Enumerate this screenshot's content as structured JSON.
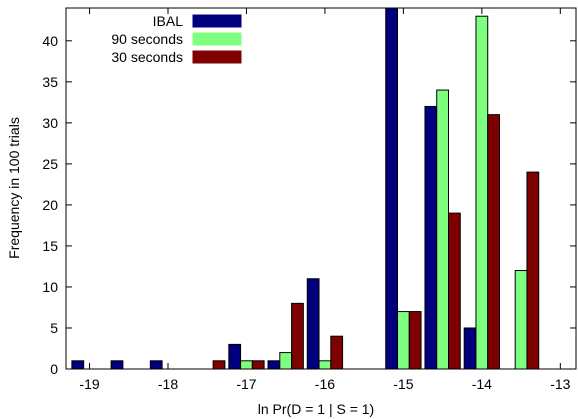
{
  "chart_data": {
    "type": "bar",
    "xlabel": "ln Pr(D = 1 | S = 1)",
    "ylabel": "Frequency in 100 trials",
    "xlim": [
      -19.3,
      -12.8
    ],
    "ylim": [
      0,
      44
    ],
    "x_ticks": [
      -19,
      -18,
      -17,
      -16,
      -15,
      -14,
      -13
    ],
    "x_tick_labels": [
      "-19",
      "-18",
      "-17",
      "-16",
      "-15",
      "-14",
      "-13"
    ],
    "y_ticks": [
      0,
      5,
      10,
      15,
      20,
      25,
      30,
      35,
      40
    ],
    "y_tick_labels": [
      "0",
      "5",
      "10",
      "15",
      "20",
      "25",
      "30",
      "35",
      "40"
    ],
    "grid": false,
    "legend_position": "top-left",
    "bin_centers": [
      -19,
      -18.5,
      -18,
      -17.5,
      -17,
      -16.5,
      -16,
      -15.5,
      -15,
      -14.5,
      -14,
      -13.5,
      -13
    ],
    "series": [
      {
        "name": "IBAL",
        "color": "#00007f",
        "values": [
          1,
          1,
          1,
          0,
          3,
          1,
          11,
          0,
          44,
          32,
          5,
          0,
          0
        ]
      },
      {
        "name": "90 seconds",
        "color": "#7fff7f",
        "values": [
          0,
          0,
          0,
          0,
          1,
          2,
          1,
          0,
          7,
          34,
          43,
          12,
          0
        ]
      },
      {
        "name": "30 seconds",
        "color": "#7f0000",
        "values": [
          0,
          0,
          0,
          1,
          1,
          8,
          4,
          0,
          7,
          19,
          31,
          24,
          0
        ]
      }
    ]
  }
}
